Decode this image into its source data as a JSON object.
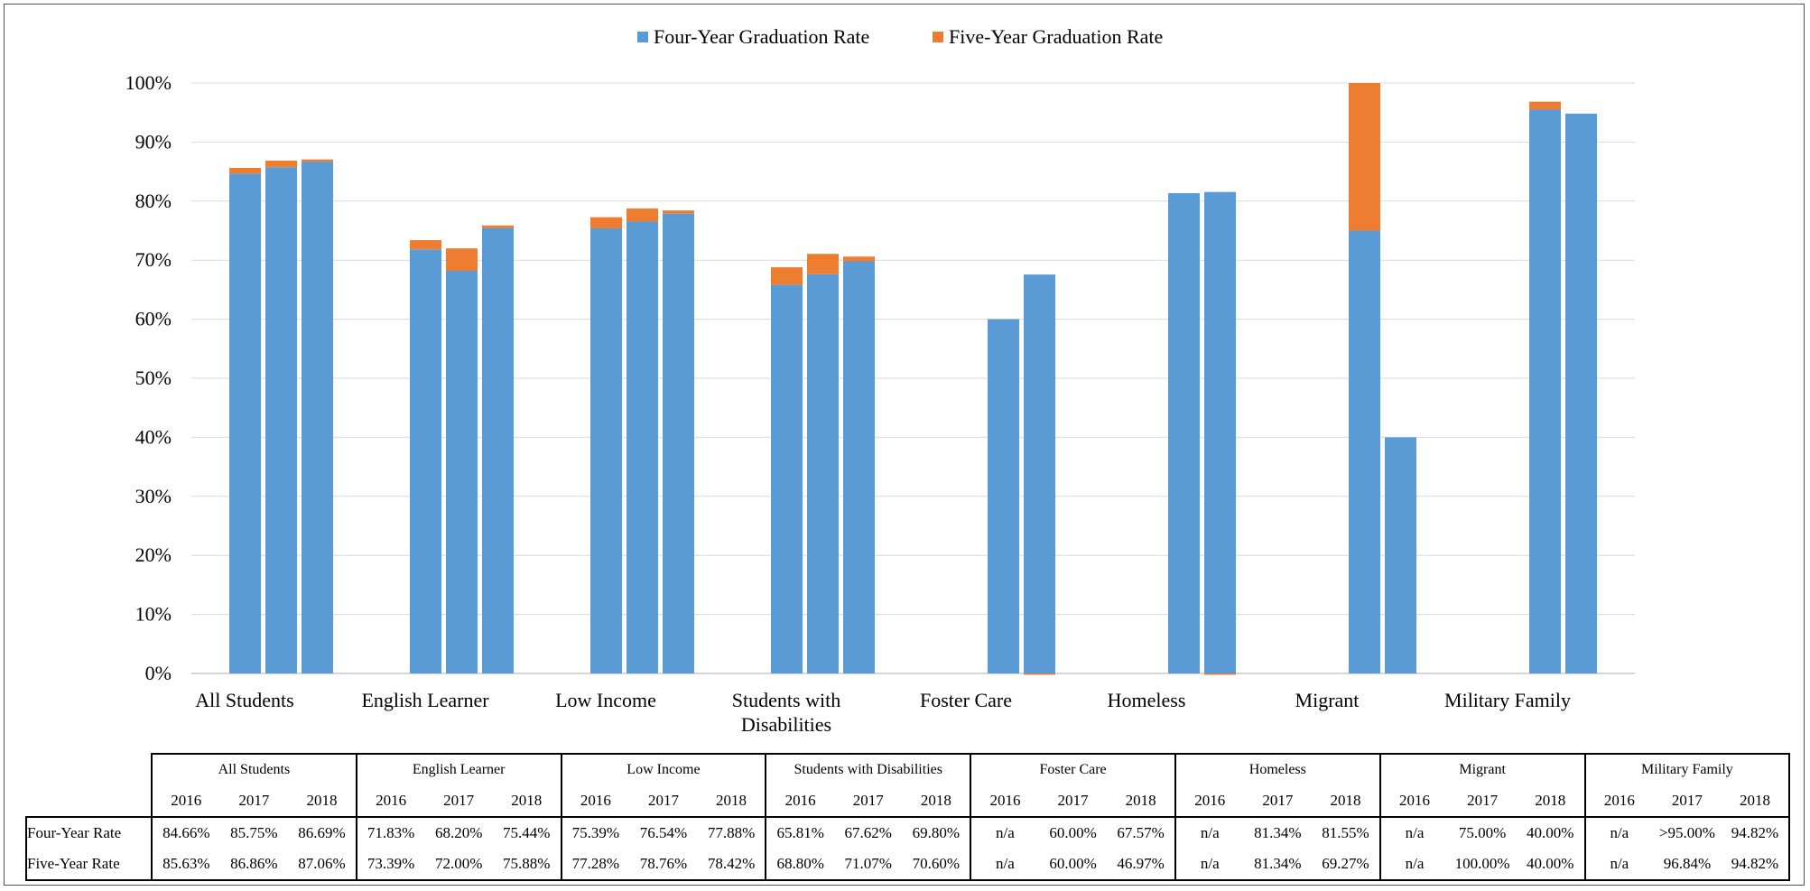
{
  "chart_data": {
    "type": "bar",
    "stacked": true,
    "categories": [
      "All Students",
      "English Learner",
      "Low Income",
      "Students with Disabilities",
      "Foster Care",
      "Homeless",
      "Migrant",
      "Military Family"
    ],
    "years": [
      "2016",
      "2017",
      "2018"
    ],
    "series": [
      {
        "name": "Four-Year Graduation Rate",
        "color": "#5B9BD5",
        "values": [
          [
            84.66,
            85.75,
            86.69
          ],
          [
            71.83,
            68.2,
            75.44
          ],
          [
            75.39,
            76.54,
            77.88
          ],
          [
            65.81,
            67.62,
            69.8
          ],
          [
            null,
            60.0,
            67.57
          ],
          [
            null,
            81.34,
            81.55
          ],
          [
            null,
            75.0,
            40.0
          ],
          [
            null,
            95.5,
            94.82
          ]
        ]
      },
      {
        "name": "Five-Year Graduation Rate",
        "color": "#ED7D31",
        "values": [
          [
            85.63,
            86.86,
            87.06
          ],
          [
            73.39,
            72.0,
            75.88
          ],
          [
            77.28,
            78.76,
            78.42
          ],
          [
            68.8,
            71.07,
            70.6
          ],
          [
            null,
            60.0,
            46.97
          ],
          [
            null,
            81.34,
            69.27
          ],
          [
            null,
            100.0,
            40.0
          ],
          [
            null,
            96.84,
            94.82
          ]
        ]
      }
    ],
    "yticks": [
      "0%",
      "10%",
      "20%",
      "30%",
      "40%",
      "50%",
      "60%",
      "70%",
      "80%",
      "90%",
      "100%"
    ],
    "ylim": [
      0,
      100
    ],
    "grid": true,
    "legend_position": "top-center"
  },
  "table": {
    "groups": [
      "All Students",
      "English Learner",
      "Low Income",
      "Students with Disabilities",
      "Foster Care",
      "Homeless",
      "Migrant",
      "Military Family"
    ],
    "years": [
      "2016",
      "2017",
      "2018"
    ],
    "rows": [
      {
        "label": "Four-Year Rate",
        "values": [
          "84.66%",
          "85.75%",
          "86.69%",
          "71.83%",
          "68.20%",
          "75.44%",
          "75.39%",
          "76.54%",
          "77.88%",
          "65.81%",
          "67.62%",
          "69.80%",
          "n/a",
          "60.00%",
          "67.57%",
          "n/a",
          "81.34%",
          "81.55%",
          "n/a",
          "75.00%",
          "40.00%",
          "n/a",
          ">95.00%",
          "94.82%"
        ]
      },
      {
        "label": "Five-Year Rate",
        "values": [
          "85.63%",
          "86.86%",
          "87.06%",
          "73.39%",
          "72.00%",
          "75.88%",
          "77.28%",
          "78.76%",
          "78.42%",
          "68.80%",
          "71.07%",
          "70.60%",
          "n/a",
          "60.00%",
          "46.97%",
          "n/a",
          "81.34%",
          "69.27%",
          "n/a",
          "100.00%",
          "40.00%",
          "n/a",
          "96.84%",
          "94.82%"
        ]
      }
    ]
  }
}
